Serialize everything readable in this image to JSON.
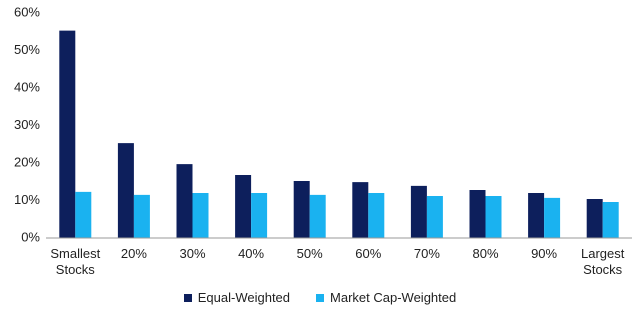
{
  "chart_data": {
    "type": "bar",
    "categories": [
      "Smallest Stocks",
      "20%",
      "30%",
      "40%",
      "50%",
      "60%",
      "70%",
      "80%",
      "90%",
      "Largest Stocks"
    ],
    "series": [
      {
        "name": "Equal-Weighted",
        "color": "#0d1f5c",
        "values": [
          55.3,
          25.3,
          19.7,
          16.8,
          15.2,
          14.9,
          13.9,
          12.8,
          12.0,
          10.4
        ]
      },
      {
        "name": "Market Cap-Weighted",
        "color": "#1ab2f0",
        "values": [
          12.3,
          11.5,
          12.0,
          12.0,
          11.5,
          12.0,
          11.2,
          11.2,
          10.7,
          9.6
        ]
      }
    ],
    "ylim": [
      0,
      60
    ],
    "yticks": [
      {
        "value": 0,
        "label": "0%"
      },
      {
        "value": 10,
        "label": "10%"
      },
      {
        "value": 20,
        "label": "20%"
      },
      {
        "value": 30,
        "label": "30%"
      },
      {
        "value": 40,
        "label": "40%"
      },
      {
        "value": 50,
        "label": "50%"
      },
      {
        "value": 60,
        "label": "60%"
      }
    ],
    "grid": false
  }
}
